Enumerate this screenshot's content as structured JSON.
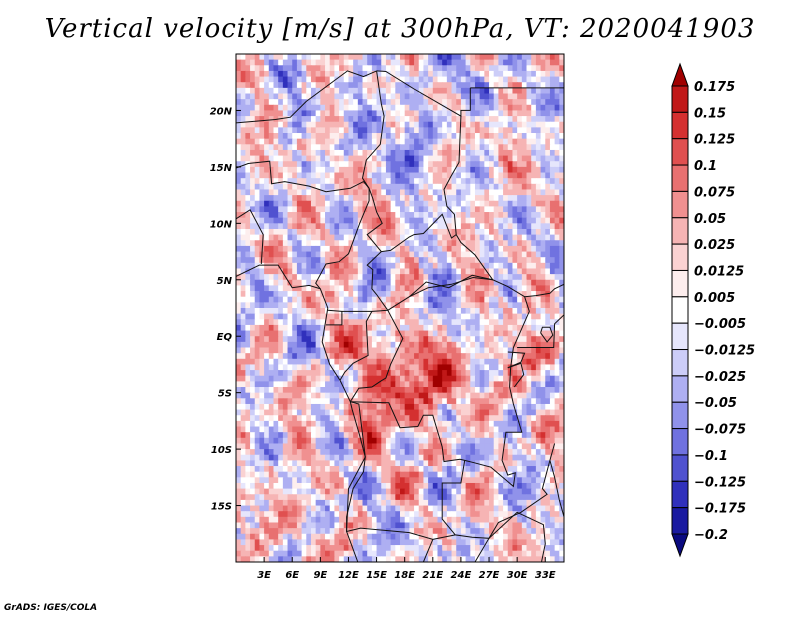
{
  "chart_data": {
    "type": "heatmap",
    "title": "Vertical velocity [m/s] at 300hPa, VT: 2020041903",
    "variable": "Vertical velocity",
    "units": "m/s",
    "level": "300hPa",
    "valid_time": "2020041903",
    "x_axis": {
      "range": [
        0,
        35
      ],
      "ticks": [
        3,
        6,
        9,
        12,
        15,
        18,
        21,
        24,
        27,
        30,
        33
      ],
      "tick_labels": [
        "3E",
        "6E",
        "9E",
        "12E",
        "15E",
        "18E",
        "21E",
        "24E",
        "27E",
        "30E",
        "33E"
      ]
    },
    "y_axis": {
      "range": [
        -20,
        25
      ],
      "ticks": [
        20,
        15,
        10,
        5,
        0,
        -5,
        -10,
        -15
      ],
      "tick_labels": [
        "20N",
        "15N",
        "10N",
        "5N",
        "EQ",
        "5S",
        "10S",
        "15S"
      ]
    },
    "colorbar": {
      "levels": [
        0.175,
        0.15,
        0.125,
        0.1,
        0.075,
        0.05,
        0.025,
        0.0125,
        0.005,
        -0.005,
        -0.0125,
        -0.025,
        -0.05,
        -0.075,
        -0.1,
        -0.125,
        -0.175,
        -0.2
      ],
      "labels": [
        "0.175",
        "0.15",
        "0.125",
        "0.1",
        "0.075",
        "0.05",
        "0.025",
        "0.0125",
        "0.005",
        "−0.005",
        "−0.0125",
        "−0.025",
        "−0.05",
        "−0.075",
        "−0.1",
        "−0.125",
        "−0.175",
        "−0.2"
      ],
      "colors": [
        "#a00000",
        "#c01818",
        "#d43030",
        "#e05050",
        "#e87070",
        "#f09090",
        "#f6b4b4",
        "#fad2d2",
        "#fdeeee",
        "#ffffff",
        "#e6e6fc",
        "#cccdf8",
        "#aeaff2",
        "#9092ea",
        "#7072e0",
        "#5052d0",
        "#3030bc",
        "#1a1aa0",
        "#0a0a80"
      ]
    },
    "field_seed": 20200419
  },
  "credit": "GrADS: IGES/COLA"
}
